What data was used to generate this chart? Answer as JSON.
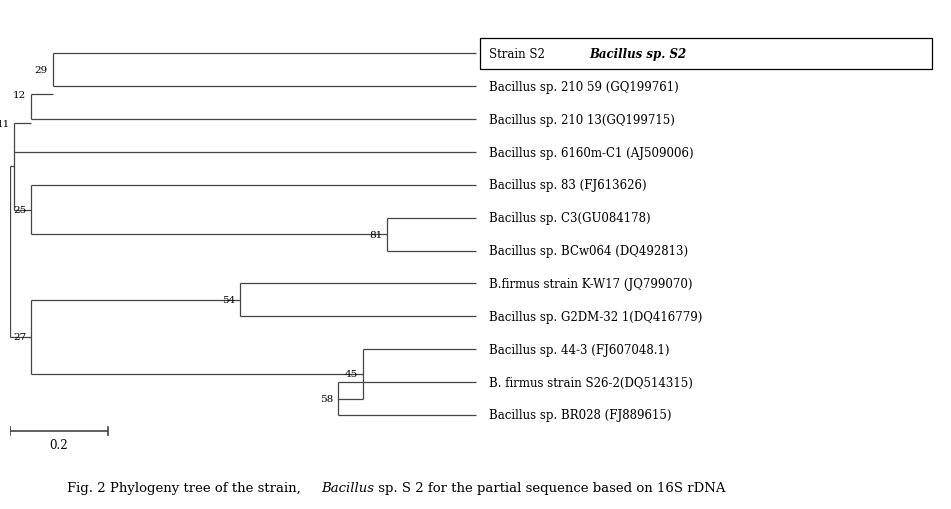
{
  "background_color": "#ffffff",
  "fig_width": 9.51,
  "fig_height": 5.1,
  "scale_bar_label": "0.2",
  "taxa": [
    "Strain S2",
    "Bacillus sp. S2",
    "Bacillus sp. 210 59 (GQ199761)",
    "Bacillus sp. 210 13(GQ199715)",
    "Bacillus sp. 6160m-C1 (AJ509006)",
    "Bacillus sp. 83 (FJ613626)",
    "Bacillus sp. C3(GU084178)",
    "Bacillus sp. BCw064 (DQ492813)",
    "B.firmus strain K-W17 (JQ799070)",
    "Bacillus sp. G2DM-32 1(DQ416779)",
    "Bacillus sp. 44-3 (FJ607048.1)",
    "B. firmus strain S26-2(DQ514315)",
    "Bacillus sp. BR028 (FJ889615)"
  ],
  "line_color": "#444444",
  "text_color": "#000000",
  "font_size": 8.5,
  "bootstrap_font_size": 7.5,
  "caption_prefix": "Fig. 2 Phylogeny tree of the strain, ",
  "caption_italic": "Bacillus",
  "caption_suffix": " sp. S 2 for the partial sequence based on 16S rDNA",
  "nodes": {
    "xR": 0.0,
    "xN11": 0.05,
    "xN12": 0.22,
    "xN29": 0.44,
    "xN25": 0.22,
    "xN27": 0.22,
    "xN54": 2.35,
    "xN81": 3.85,
    "xN45": 3.6,
    "xN58": 3.35,
    "xtip": 4.75
  },
  "scale": 1.0
}
